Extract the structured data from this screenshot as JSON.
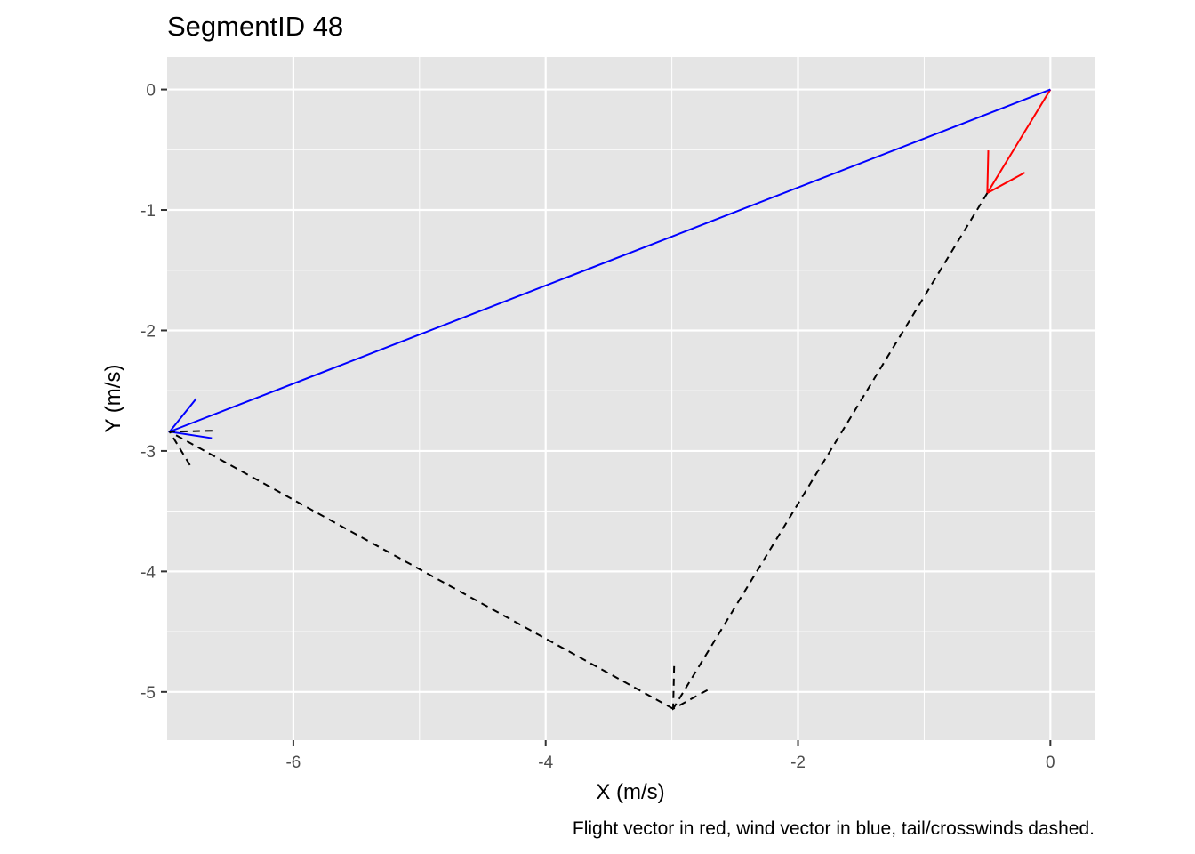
{
  "chart_data": {
    "type": "line",
    "title": "SegmentID 48",
    "xlabel": "X (m/s)",
    "ylabel": "Y (m/s)",
    "caption": "Flight vector in red, wind vector in blue, tail/crosswinds dashed.",
    "xlim": [
      -7.0,
      0.35
    ],
    "ylim": [
      -5.4,
      0.27
    ],
    "x_ticks": [
      -6,
      -4,
      -2,
      0
    ],
    "x_tick_labels": [
      "-6",
      "-4",
      "-2",
      "0"
    ],
    "y_ticks": [
      0,
      -1,
      -2,
      -3,
      -4,
      -5
    ],
    "y_tick_labels": [
      "0",
      "-1",
      "-2",
      "-3",
      "-4",
      "-5"
    ],
    "grid": true,
    "background": "#e5e5e5",
    "series": [
      {
        "kind": "flight",
        "color": "#ff0000",
        "linetype": "solid",
        "from": [
          0,
          0
        ],
        "to": [
          -0.5,
          -0.86
        ]
      },
      {
        "kind": "wind",
        "color": "#0000ff",
        "linetype": "solid",
        "from": [
          0,
          0
        ],
        "to": [
          -6.98,
          -2.84
        ]
      },
      {
        "kind": "tailwind",
        "color": "#000000",
        "linetype": "dashed",
        "from": [
          -0.5,
          -0.86
        ],
        "to": [
          -2.99,
          -5.14
        ]
      },
      {
        "kind": "crosswind",
        "color": "#000000",
        "linetype": "dashed",
        "from": [
          -2.99,
          -5.14
        ],
        "to": [
          -6.98,
          -2.84
        ]
      }
    ]
  }
}
